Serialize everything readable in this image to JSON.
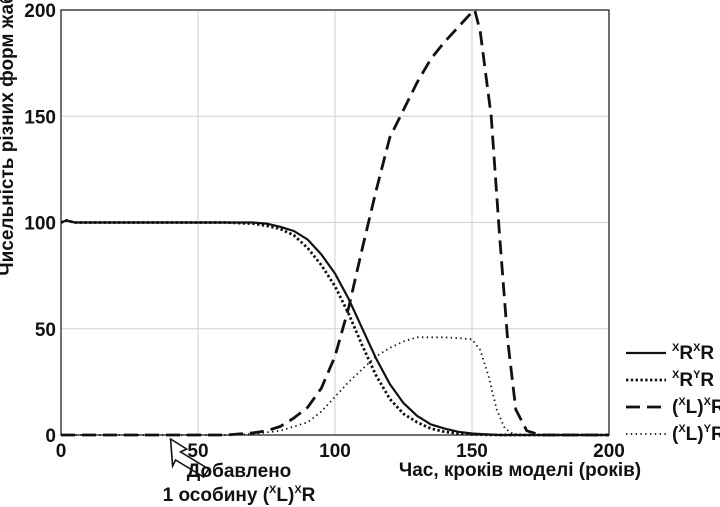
{
  "chart_data": {
    "type": "line",
    "xlabel": "Час, кроків моделі (років)",
    "ylabel": "Чисельність різних форм жаб",
    "xlim": [
      0,
      200
    ],
    "ylim": [
      0,
      200
    ],
    "x_ticks": [
      "0",
      "50",
      "100",
      "150",
      "200"
    ],
    "y_ticks": [
      "0",
      "50",
      "100",
      "150",
      "200"
    ],
    "grid": true,
    "legend_position": "right",
    "annotation": {
      "line1": "Добавлено",
      "line2_pre": "1 особину (",
      "line2_sup1": "X",
      "line2_mid": "L)",
      "line2_sup2": "X",
      "line2_post": "R",
      "x": 40
    },
    "series": [
      {
        "name": "XRXR",
        "legend": {
          "s1": "X",
          "t1": "R",
          "s2": "X",
          "t2": "R"
        },
        "style": "solid",
        "points": [
          [
            0,
            100
          ],
          [
            2,
            101
          ],
          [
            5,
            100
          ],
          [
            20,
            100
          ],
          [
            40,
            100
          ],
          [
            60,
            100
          ],
          [
            70,
            100
          ],
          [
            75,
            99.5
          ],
          [
            80,
            98
          ],
          [
            85,
            96
          ],
          [
            90,
            92
          ],
          [
            95,
            85
          ],
          [
            100,
            76
          ],
          [
            105,
            64
          ],
          [
            110,
            50
          ],
          [
            115,
            36
          ],
          [
            120,
            24
          ],
          [
            125,
            15
          ],
          [
            130,
            9
          ],
          [
            135,
            5
          ],
          [
            140,
            3
          ],
          [
            145,
            1.5
          ],
          [
            150,
            0.7
          ],
          [
            155,
            0.3
          ],
          [
            160,
            0
          ],
          [
            170,
            0
          ],
          [
            200,
            0
          ]
        ]
      },
      {
        "name": "XRYR",
        "legend": {
          "s1": "X",
          "t1": "R",
          "s2": "Y",
          "t2": "R"
        },
        "style": "dotted",
        "points": [
          [
            0,
            100
          ],
          [
            2,
            101
          ],
          [
            5,
            100
          ],
          [
            20,
            100
          ],
          [
            40,
            100
          ],
          [
            60,
            100
          ],
          [
            70,
            99.5
          ],
          [
            75,
            98.5
          ],
          [
            80,
            97
          ],
          [
            85,
            94
          ],
          [
            90,
            88
          ],
          [
            95,
            80
          ],
          [
            100,
            70
          ],
          [
            105,
            57
          ],
          [
            110,
            42
          ],
          [
            115,
            28
          ],
          [
            120,
            17
          ],
          [
            125,
            10
          ],
          [
            130,
            6
          ],
          [
            135,
            3
          ],
          [
            140,
            1.5
          ],
          [
            145,
            0.7
          ],
          [
            150,
            0.3
          ],
          [
            160,
            0
          ],
          [
            170,
            0
          ],
          [
            200,
            0
          ]
        ]
      },
      {
        "name": "(XL)XR",
        "legend": {
          "s1": "X",
          "t1": "L)",
          "s2": "X",
          "t2": "R",
          "pre": "("
        },
        "style": "dashed",
        "points": [
          [
            0,
            0
          ],
          [
            20,
            0
          ],
          [
            40,
            0
          ],
          [
            60,
            0
          ],
          [
            70,
            1
          ],
          [
            75,
            2
          ],
          [
            80,
            4
          ],
          [
            85,
            8
          ],
          [
            90,
            13
          ],
          [
            95,
            22
          ],
          [
            100,
            37
          ],
          [
            105,
            60
          ],
          [
            110,
            88
          ],
          [
            115,
            115
          ],
          [
            120,
            140
          ],
          [
            125,
            153
          ],
          [
            130,
            166
          ],
          [
            135,
            177
          ],
          [
            140,
            185
          ],
          [
            145,
            192
          ],
          [
            150,
            199
          ],
          [
            151,
            200
          ],
          [
            153,
            190
          ],
          [
            157,
            150
          ],
          [
            160,
            95
          ],
          [
            163,
            45
          ],
          [
            166,
            12
          ],
          [
            170,
            2
          ],
          [
            175,
            0
          ],
          [
            200,
            0
          ]
        ]
      },
      {
        "name": "(XL)YR",
        "legend": {
          "s1": "X",
          "t1": "L)",
          "s2": "Y",
          "t2": "R",
          "pre": "("
        },
        "style": "sparse-dotted",
        "points": [
          [
            0,
            0
          ],
          [
            40,
            0
          ],
          [
            60,
            0
          ],
          [
            70,
            0.5
          ],
          [
            80,
            2
          ],
          [
            90,
            6
          ],
          [
            95,
            11
          ],
          [
            100,
            18
          ],
          [
            105,
            25
          ],
          [
            110,
            31
          ],
          [
            115,
            37
          ],
          [
            120,
            41
          ],
          [
            125,
            44
          ],
          [
            130,
            46
          ],
          [
            140,
            46
          ],
          [
            146,
            45.5
          ],
          [
            150,
            45
          ],
          [
            153,
            40
          ],
          [
            156,
            28
          ],
          [
            159,
            12
          ],
          [
            162,
            3
          ],
          [
            165,
            0.5
          ],
          [
            170,
            0
          ],
          [
            200,
            0
          ]
        ]
      }
    ]
  }
}
